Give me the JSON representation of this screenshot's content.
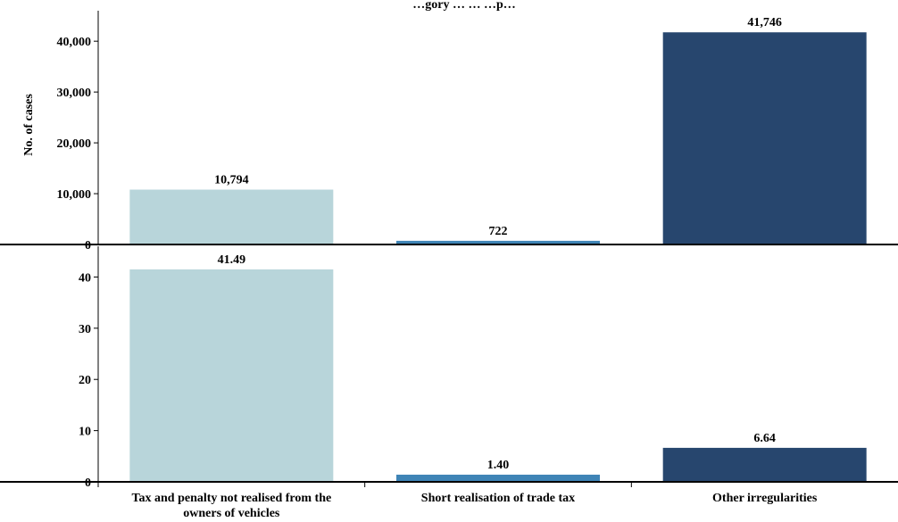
{
  "chart_data": [
    {
      "type": "bar",
      "title": "…gory … … …p…",
      "ylabel": "No. of cases",
      "categories": [
        "Tax and penalty not realised from the owners of vehicles",
        "Short realisation of trade tax",
        "Other irregularities"
      ],
      "values": [
        10794,
        722,
        41746
      ],
      "value_labels": [
        "10,794",
        "722",
        "41,746"
      ],
      "yticks": [
        0,
        10000,
        20000,
        30000,
        40000
      ],
      "ytick_labels": [
        "0",
        "10,000",
        "20,000",
        "30,000",
        "40,000"
      ],
      "ylim": [
        0,
        46000
      ],
      "colors": [
        "#b8d5da",
        "#3f84b6",
        "#27466e"
      ]
    },
    {
      "type": "bar",
      "ylabel": "",
      "categories": [
        "Tax and penalty not realised from the owners of vehicles",
        "Short realisation of trade tax",
        "Other irregularities"
      ],
      "values": [
        41.49,
        1.4,
        6.64
      ],
      "value_labels": [
        "41.49",
        "1.40",
        "6.64"
      ],
      "yticks": [
        0,
        10,
        20,
        30,
        40
      ],
      "ytick_labels": [
        "0",
        "10",
        "20",
        "30",
        "40"
      ],
      "ylim": [
        0,
        46
      ],
      "colors": [
        "#b8d5da",
        "#3f84b6",
        "#27466e"
      ]
    }
  ],
  "xaxis": {
    "category_lines": [
      [
        "Tax and penalty not realised from the",
        "owners of vehicles"
      ],
      [
        "Short realisation of trade tax"
      ],
      [
        "Other irregularities"
      ]
    ]
  }
}
